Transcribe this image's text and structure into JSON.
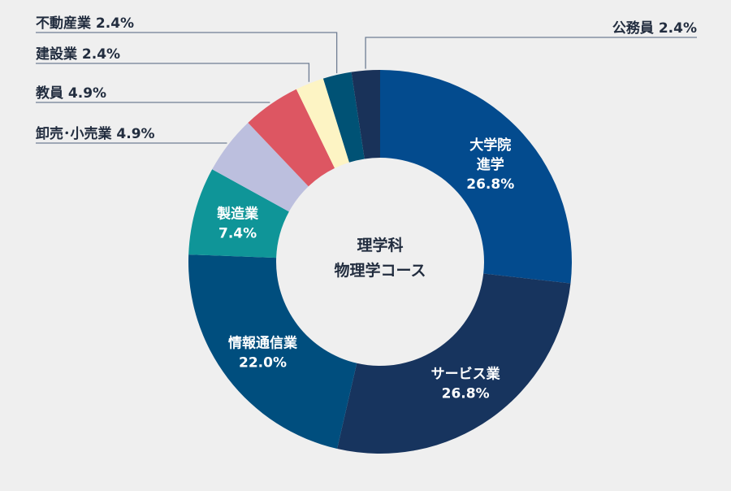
{
  "chart_data": {
    "type": "donut",
    "center_title_line1": "理学科",
    "center_title_line2": "物理学コース",
    "background": "#efefef",
    "slices": [
      {
        "label": "大学院",
        "label2": "進学",
        "value": 26.8,
        "value_text": "26.8%",
        "color": "#034b8e",
        "label_style": "inside"
      },
      {
        "label": "サービス業",
        "label2": "",
        "value": 26.8,
        "value_text": "26.8%",
        "color": "#17345e",
        "label_style": "inside"
      },
      {
        "label": "情報通信業",
        "label2": "",
        "value": 22.0,
        "value_text": "22.0%",
        "color": "#004e7e",
        "label_style": "inside"
      },
      {
        "label": "製造業",
        "label2": "",
        "value": 7.4,
        "value_text": "7.4%",
        "color": "#0f9598",
        "label_style": "inside"
      },
      {
        "label": "卸売･小売業",
        "label2": "",
        "value": 4.9,
        "value_text": "4.9%",
        "color": "#bcbfde",
        "label_style": "callout-left"
      },
      {
        "label": "教員",
        "label2": "",
        "value": 4.9,
        "value_text": "4.9%",
        "color": "#dd5662",
        "label_style": "callout-left"
      },
      {
        "label": "建設業",
        "label2": "",
        "value": 2.4,
        "value_text": "2.4%",
        "color": "#fdf4c4",
        "label_style": "callout-left"
      },
      {
        "label": "不動産業",
        "label2": "",
        "value": 2.4,
        "value_text": "2.4%",
        "color": "#005275",
        "label_style": "callout-left"
      },
      {
        "label": "公務員",
        "label2": "",
        "value": 2.4,
        "value_text": "2.4%",
        "color": "#193259",
        "label_style": "callout-right"
      }
    ]
  }
}
